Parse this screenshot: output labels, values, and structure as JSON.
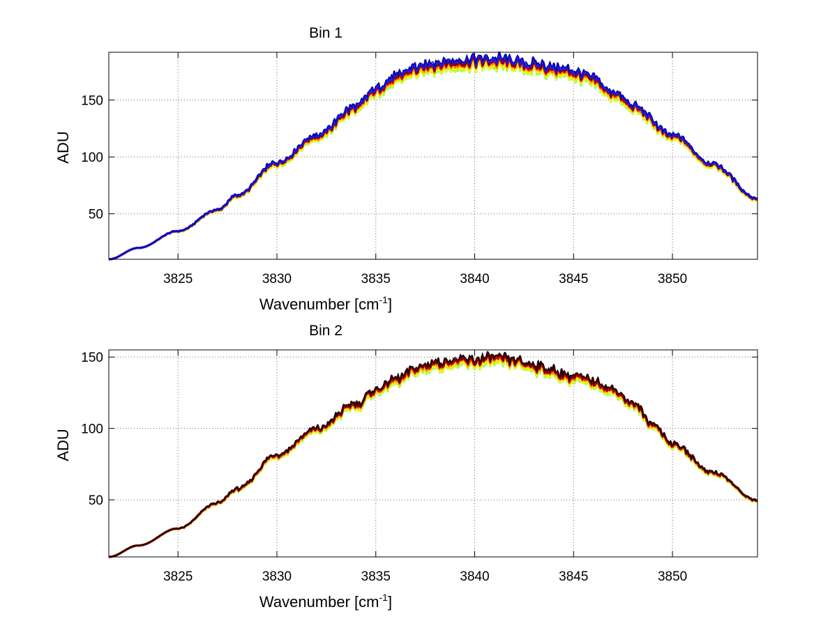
{
  "chart_data": [
    {
      "type": "line",
      "title": "Bin 1",
      "xlabel": "Wavenumber [cm",
      "xlabel_sup": "-1",
      "xlabel_close": "]",
      "ylabel": "ADU",
      "xlim": [
        3821.5,
        3854.3
      ],
      "ylim": [
        10,
        192
      ],
      "xticks": [
        3825,
        3830,
        3835,
        3840,
        3845,
        3850
      ],
      "yticks": [
        50,
        100,
        150
      ],
      "grid": true,
      "band_colors": [
        "#9cff3c",
        "#e4ff2a",
        "#ffe000",
        "#ff7a00",
        "#cc0000",
        "#6e0000",
        "#1b1bff",
        "#000080"
      ],
      "profile": {
        "x": [
          3821.5,
          3823,
          3825,
          3827,
          3828,
          3830,
          3832,
          3834,
          3835,
          3836,
          3837,
          3838,
          3839,
          3840,
          3841,
          3842,
          3843,
          3844,
          3845,
          3846,
          3847,
          3848,
          3850,
          3852,
          3854.3
        ],
        "y": [
          10,
          20,
          35,
          54,
          67,
          96,
          120,
          145,
          161,
          172,
          180,
          184,
          186,
          187,
          188,
          186,
          183,
          180,
          177,
          170,
          158,
          146,
          120,
          95,
          64
        ]
      },
      "band_spread": 8
    },
    {
      "type": "line",
      "title": "Bin 2",
      "xlabel": "Wavenumber [cm",
      "xlabel_sup": "-1",
      "xlabel_close": "]",
      "ylabel": "ADU",
      "xlim": [
        3821.5,
        3854.3
      ],
      "ylim": [
        10,
        155
      ],
      "xticks": [
        3825,
        3830,
        3835,
        3840,
        3845,
        3850
      ],
      "yticks": [
        50,
        100,
        150
      ],
      "grid": true,
      "band_colors": [
        "#9cff3c",
        "#e4ff2a",
        "#ffe000",
        "#ff7a00",
        "#cc0000",
        "#6e0000",
        "#000000"
      ],
      "profile": {
        "x": [
          3821.5,
          3823,
          3825,
          3827,
          3828,
          3830,
          3832,
          3834,
          3835,
          3836,
          3837,
          3838,
          3839,
          3840,
          3841,
          3842,
          3843,
          3844,
          3845,
          3846,
          3847,
          3848,
          3849,
          3850,
          3852,
          3854.3
        ],
        "y": [
          10,
          18,
          30,
          48,
          58,
          82,
          100,
          118,
          128,
          135,
          143,
          147,
          148,
          149,
          150,
          149,
          145,
          141,
          137,
          134,
          128,
          118,
          104,
          90,
          70,
          50
        ]
      },
      "band_spread": 6
    }
  ]
}
